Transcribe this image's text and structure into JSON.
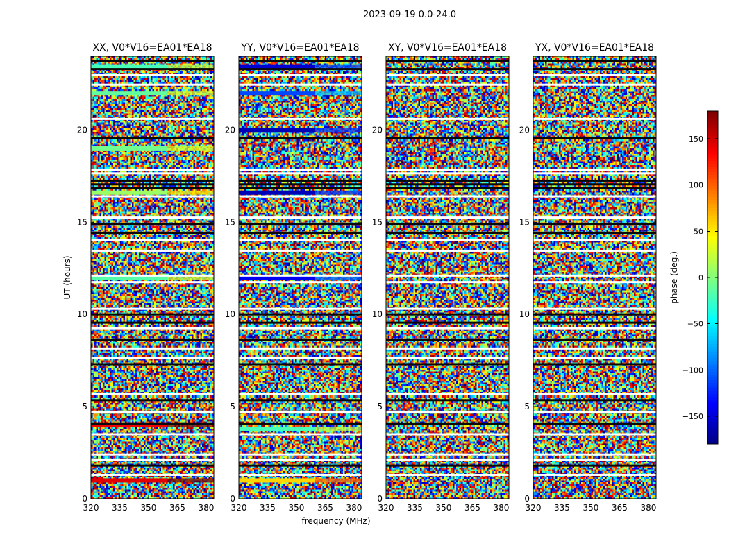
{
  "chart_data": {
    "type": "heatmap",
    "suptitle": "2023-09-19 0.0-24.0",
    "panels": [
      {
        "title": "XX, V0*V16=EA01*EA18",
        "pol": "XX"
      },
      {
        "title": "YY, V0*V16=EA01*EA18",
        "pol": "YY"
      },
      {
        "title": "XY, V0*V16=EA01*EA18",
        "pol": "XY"
      },
      {
        "title": "YX, V0*V16=EA01*EA18",
        "pol": "YX"
      }
    ],
    "xlabel": "frequency (MHz)",
    "ylabel": "UT (hours)",
    "xlim": [
      320,
      384
    ],
    "xticks": [
      320,
      335,
      350,
      365,
      380
    ],
    "ylim": [
      0,
      24
    ],
    "yticks": [
      0,
      5,
      10,
      15,
      20
    ],
    "colorbar": {
      "label": "phase (deg.)",
      "range": [
        -180,
        180
      ],
      "ticks": [
        150,
        100,
        50,
        0,
        -50,
        -100,
        -150
      ],
      "tick_labels": [
        "150",
        "100",
        "50",
        "0",
        "−50",
        "−100",
        "−150"
      ],
      "colormap": "jet"
    },
    "flagged_rows_ut": [
      23.0,
      22.45,
      20.6,
      17.85,
      17.65,
      16.4,
      15.25,
      14.05,
      13.45,
      12.1,
      11.75,
      10.3,
      9.25,
      8.15,
      7.65,
      5.7,
      4.7,
      3.5,
      2.4,
      2.1,
      1.3
    ],
    "dark_rows_ut": [
      23.75,
      23.3,
      19.55,
      17.25,
      17.05,
      16.85,
      14.9,
      14.4,
      10.0,
      9.55,
      8.6,
      7.3,
      5.35,
      4.05,
      1.8
    ],
    "coherent_streaks": [
      {
        "pol": "XX",
        "ut": 23.45,
        "phase": -20
      },
      {
        "pol": "XX",
        "ut": 22.0,
        "phase": -10
      },
      {
        "pol": "XX",
        "ut": 19.0,
        "phase": -5
      },
      {
        "pol": "XX",
        "ut": 16.6,
        "phase": 10
      },
      {
        "pol": "XX",
        "ut": 12.0,
        "phase": -15
      },
      {
        "pol": "XX",
        "ut": 4.0,
        "phase": 140
      },
      {
        "pol": "XX",
        "ut": 1.0,
        "phase": 145
      },
      {
        "pol": "YY",
        "ut": 23.45,
        "phase": -150
      },
      {
        "pol": "YY",
        "ut": 22.0,
        "phase": -110
      },
      {
        "pol": "YY",
        "ut": 20.0,
        "phase": -160
      },
      {
        "pol": "YY",
        "ut": 16.6,
        "phase": -160
      },
      {
        "pol": "YY",
        "ut": 12.0,
        "phase": -140
      },
      {
        "pol": "YY",
        "ut": 3.8,
        "phase": -20
      },
      {
        "pol": "YY",
        "ut": 1.0,
        "phase": 60
      }
    ]
  }
}
